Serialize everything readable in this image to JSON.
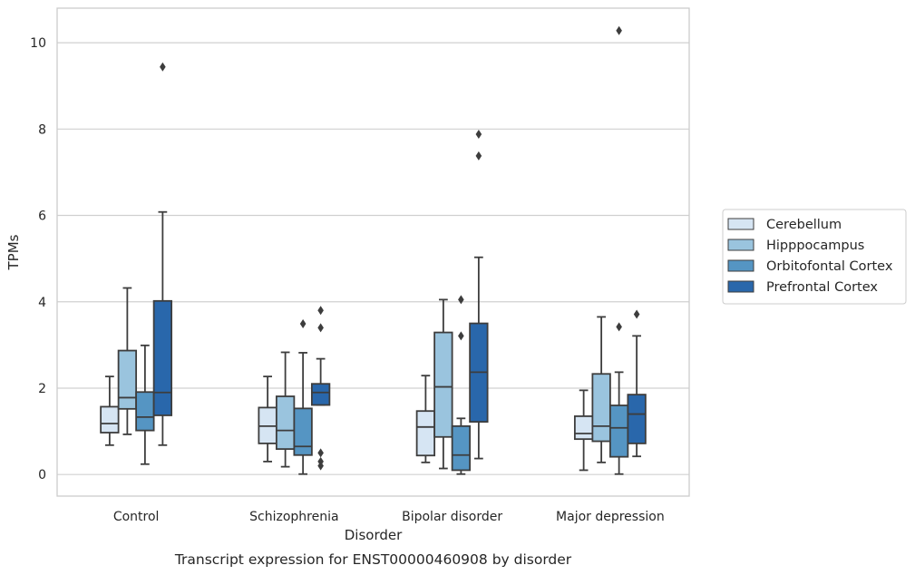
{
  "caption": "Transcript expression for ENST00000460908 by disorder",
  "chart_data": {
    "type": "box",
    "xlabel": "Disorder",
    "ylabel": "TPMs",
    "ylim": [
      -0.5,
      10.8
    ],
    "yticks": [
      0,
      2,
      4,
      6,
      8,
      10
    ],
    "grid": "horizontal",
    "legend_position": "right",
    "categories": [
      "Control",
      "Schizophrenia",
      "Bipolar disorder",
      "Major depression"
    ],
    "series": [
      {
        "name": "Cerebellum",
        "color": "#d6e5f3",
        "boxes": [
          {
            "whisker_low": 0.68,
            "q1": 0.97,
            "median": 1.18,
            "q3": 1.57,
            "whisker_high": 2.27,
            "outliers": []
          },
          {
            "whisker_low": 0.3,
            "q1": 0.72,
            "median": 1.12,
            "q3": 1.55,
            "whisker_high": 2.27,
            "outliers": []
          },
          {
            "whisker_low": 0.28,
            "q1": 0.44,
            "median": 1.1,
            "q3": 1.47,
            "whisker_high": 2.29,
            "outliers": []
          },
          {
            "whisker_low": 0.1,
            "q1": 0.82,
            "median": 0.95,
            "q3": 1.35,
            "whisker_high": 1.95,
            "outliers": []
          }
        ]
      },
      {
        "name": "Hipppocampus",
        "color": "#9ac4de",
        "boxes": [
          {
            "whisker_low": 0.93,
            "q1": 1.52,
            "median": 1.78,
            "q3": 2.87,
            "whisker_high": 4.32,
            "outliers": []
          },
          {
            "whisker_low": 0.18,
            "q1": 0.59,
            "median": 1.02,
            "q3": 1.81,
            "whisker_high": 2.83,
            "outliers": []
          },
          {
            "whisker_low": 0.14,
            "q1": 0.87,
            "median": 2.03,
            "q3": 3.29,
            "whisker_high": 4.05,
            "outliers": []
          },
          {
            "whisker_low": 0.28,
            "q1": 0.77,
            "median": 1.12,
            "q3": 2.33,
            "whisker_high": 3.65,
            "outliers": []
          }
        ]
      },
      {
        "name": "Orbitofontal Cortex",
        "color": "#5595c3",
        "boxes": [
          {
            "whisker_low": 0.24,
            "q1": 1.02,
            "median": 1.33,
            "q3": 1.91,
            "whisker_high": 2.99,
            "outliers": []
          },
          {
            "whisker_low": 0.01,
            "q1": 0.45,
            "median": 0.65,
            "q3": 1.53,
            "whisker_high": 2.82,
            "outliers": [
              3.49
            ]
          },
          {
            "whisker_low": 0.01,
            "q1": 0.1,
            "median": 0.45,
            "q3": 1.12,
            "whisker_high": 1.3,
            "outliers": [
              3.21,
              4.05
            ]
          },
          {
            "whisker_low": 0.01,
            "q1": 0.41,
            "median": 1.08,
            "q3": 1.6,
            "whisker_high": 2.37,
            "outliers": [
              3.42,
              10.28
            ]
          }
        ]
      },
      {
        "name": "Prefrontal Cortex",
        "color": "#2967ab",
        "boxes": [
          {
            "whisker_low": 0.68,
            "q1": 1.37,
            "median": 1.9,
            "q3": 4.02,
            "whisker_high": 6.08,
            "outliers": [
              9.44
            ]
          },
          {
            "whisker_low": 1.61,
            "q1": 1.61,
            "median": 1.9,
            "q3": 2.1,
            "whisker_high": 2.68,
            "outliers": [
              3.8,
              3.4,
              0.5,
              0.3,
              0.2
            ]
          },
          {
            "whisker_low": 0.37,
            "q1": 1.22,
            "median": 2.37,
            "q3": 3.5,
            "whisker_high": 5.03,
            "outliers": [
              7.38,
              7.88
            ]
          },
          {
            "whisker_low": 0.42,
            "q1": 0.72,
            "median": 1.4,
            "q3": 1.85,
            "whisker_high": 3.21,
            "outliers": [
              3.71
            ]
          }
        ]
      }
    ]
  }
}
